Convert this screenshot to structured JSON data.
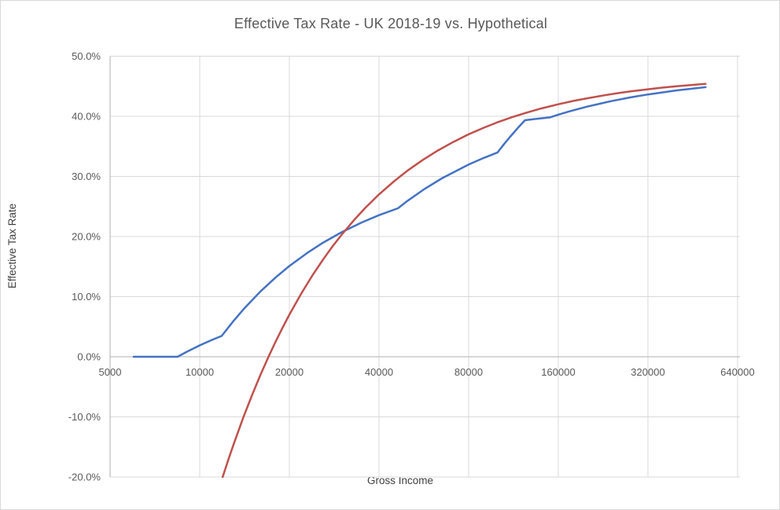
{
  "chart_data": {
    "type": "line",
    "title": "Effective Tax Rate - UK 2018-19 vs. Hypothetical",
    "xlabel": "Gross Income",
    "ylabel": "Effective Tax Rate",
    "x_scale": "log2",
    "xlim": [
      5000,
      640000
    ],
    "ylim_percent": [
      -20,
      50
    ],
    "grid": true,
    "legend": "none",
    "x_ticks": [
      {
        "value": 5000,
        "label": "5000"
      },
      {
        "value": 10000,
        "label": "10000"
      },
      {
        "value": 20000,
        "label": "20000"
      },
      {
        "value": 40000,
        "label": "40000"
      },
      {
        "value": 80000,
        "label": "80000"
      },
      {
        "value": 160000,
        "label": "160000"
      },
      {
        "value": 320000,
        "label": "320000"
      },
      {
        "value": 640000,
        "label": "640000"
      }
    ],
    "y_ticks": [
      {
        "value": 50,
        "label": "50.0%"
      },
      {
        "value": 40,
        "label": "40.0%"
      },
      {
        "value": 30,
        "label": "30.0%"
      },
      {
        "value": 20,
        "label": "20.0%"
      },
      {
        "value": 10,
        "label": "10.0%"
      },
      {
        "value": 0,
        "label": "0.0%"
      },
      {
        "value": -10,
        "label": "-10.0%"
      },
      {
        "value": -20,
        "label": "-20.0%"
      }
    ],
    "colors": {
      "series_uk": "#4472C4",
      "series_hypothetical": "#C0504D",
      "gridline": "#D9D9D9",
      "axis_line": "#BFBFBF",
      "tick_text": "#595959",
      "title_text": "#595959",
      "axis_title_text": "#404040",
      "background": "#FFFFFF"
    },
    "series": [
      {
        "name": "UK 2018-19",
        "color_key": "series_uk",
        "points_income_etrpct": [
          [
            6000,
            0
          ],
          [
            7000,
            0
          ],
          [
            8000,
            0
          ],
          [
            8424,
            0
          ],
          [
            9000,
            0.77
          ],
          [
            10000,
            1.89
          ],
          [
            11000,
            2.81
          ],
          [
            11850,
            3.47
          ],
          [
            13000,
            5.99
          ],
          [
            14142,
            8.09
          ],
          [
            16000,
            10.87
          ],
          [
            18000,
            13.22
          ],
          [
            20000,
            15.1
          ],
          [
            23000,
            17.3
          ],
          [
            26000,
            19.0
          ],
          [
            30000,
            20.73
          ],
          [
            35000,
            22.34
          ],
          [
            40000,
            23.55
          ],
          [
            46350,
            24.71
          ],
          [
            50000,
            25.97
          ],
          [
            56569,
            27.83
          ],
          [
            65000,
            29.67
          ],
          [
            80000,
            31.98
          ],
          [
            90000,
            33.09
          ],
          [
            100000,
            33.98
          ],
          [
            105000,
            35.32
          ],
          [
            110000,
            36.53
          ],
          [
            117000,
            38.05
          ],
          [
            123700,
            39.35
          ],
          [
            135000,
            39.57
          ],
          [
            150000,
            39.82
          ],
          [
            160000,
            40.27
          ],
          [
            175000,
            40.84
          ],
          [
            200000,
            41.61
          ],
          [
            240000,
            42.51
          ],
          [
            280000,
            43.15
          ],
          [
            320000,
            43.64
          ],
          [
            400000,
            44.31
          ],
          [
            500000,
            44.85
          ]
        ]
      },
      {
        "name": "Hypothetical",
        "color_key": "series_hypothetical",
        "points_income_etrpct": [
          [
            11940,
            -20
          ],
          [
            12500,
            -17
          ],
          [
            13000,
            -14.54
          ],
          [
            14000,
            -10.14
          ],
          [
            15000,
            -6.33
          ],
          [
            16000,
            -3
          ],
          [
            17021,
            0
          ],
          [
            18000,
            2.56
          ],
          [
            19000,
            4.89
          ],
          [
            20000,
            7
          ],
          [
            22000,
            10.64
          ],
          [
            24000,
            13.67
          ],
          [
            26000,
            16.23
          ],
          [
            28000,
            18.43
          ],
          [
            30000,
            20.33
          ],
          [
            33000,
            22.76
          ],
          [
            36000,
            24.78
          ],
          [
            40000,
            27
          ],
          [
            45000,
            29.22
          ],
          [
            50000,
            31
          ],
          [
            56000,
            32.71
          ],
          [
            63000,
            34.3
          ],
          [
            71000,
            35.73
          ],
          [
            80000,
            37
          ],
          [
            90000,
            38.11
          ],
          [
            100000,
            39
          ],
          [
            112000,
            39.86
          ],
          [
            125000,
            40.6
          ],
          [
            140000,
            41.29
          ],
          [
            160000,
            42
          ],
          [
            180000,
            42.56
          ],
          [
            200000,
            43
          ],
          [
            225000,
            43.44
          ],
          [
            250000,
            43.8
          ],
          [
            280000,
            44.14
          ],
          [
            320000,
            44.5
          ],
          [
            360000,
            44.78
          ],
          [
            400000,
            45
          ],
          [
            450000,
            45.22
          ],
          [
            500000,
            45.4
          ]
        ]
      }
    ]
  }
}
